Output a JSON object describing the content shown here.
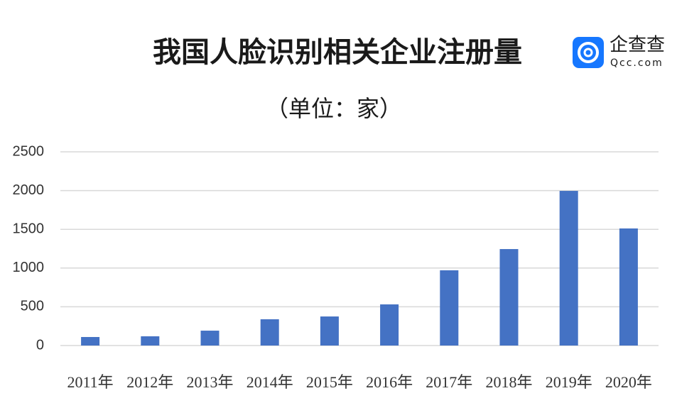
{
  "chart_data": {
    "type": "bar",
    "title": "我国人脸识别相关企业注册量",
    "subtitle": "（单位：家）",
    "brand": {
      "name": "企查查",
      "domain": "Qcc.com"
    },
    "categories": [
      "2011年",
      "2012年",
      "2013年",
      "2014年",
      "2015年",
      "2016年",
      "2017年",
      "2018年",
      "2019年",
      "2020年"
    ],
    "values": [
      110,
      119,
      192,
      339,
      375,
      531,
      971,
      1245,
      1996,
      1511
    ],
    "color": "#4472c4",
    "ylim": [
      0,
      2500
    ],
    "yticks": [
      0,
      500,
      1000,
      1500,
      2000,
      2500
    ],
    "grid": true
  }
}
